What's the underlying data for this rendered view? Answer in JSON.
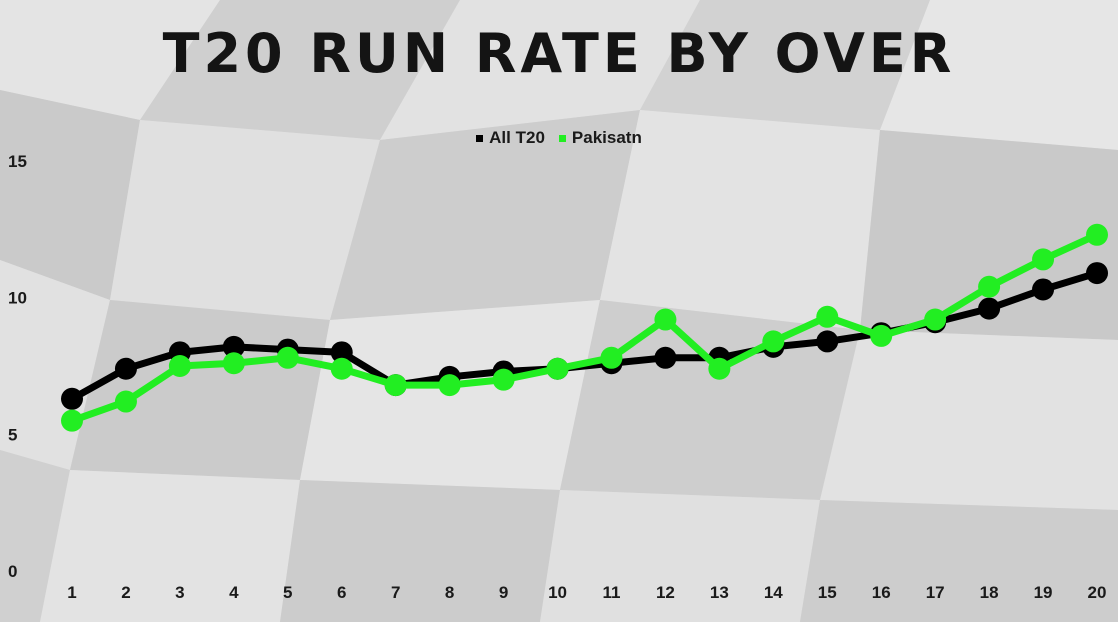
{
  "chart_data": {
    "type": "line",
    "title": "T20 RUN RATE BY OVER",
    "xlabel": "",
    "ylabel": "",
    "x": [
      1,
      2,
      3,
      4,
      5,
      6,
      7,
      8,
      9,
      10,
      11,
      12,
      13,
      14,
      15,
      16,
      17,
      18,
      19,
      20
    ],
    "ylim": [
      0,
      15
    ],
    "yticks": [
      0,
      5,
      10,
      15
    ],
    "grid": false,
    "legend_position": "top-center",
    "series": [
      {
        "name": "All T20",
        "color": "#000000",
        "values": [
          6.3,
          7.4,
          8.0,
          8.2,
          8.1,
          8.0,
          6.8,
          7.1,
          7.3,
          7.4,
          7.6,
          7.8,
          7.8,
          8.2,
          8.4,
          8.7,
          9.1,
          9.6,
          10.3,
          10.9
        ]
      },
      {
        "name": "Pakisatn",
        "color": "#22ee22",
        "values": [
          5.5,
          6.2,
          7.5,
          7.6,
          7.8,
          7.4,
          6.8,
          6.8,
          7.0,
          7.4,
          7.8,
          9.2,
          7.4,
          8.4,
          9.3,
          8.6,
          9.2,
          10.4,
          11.4,
          12.3
        ]
      }
    ]
  }
}
